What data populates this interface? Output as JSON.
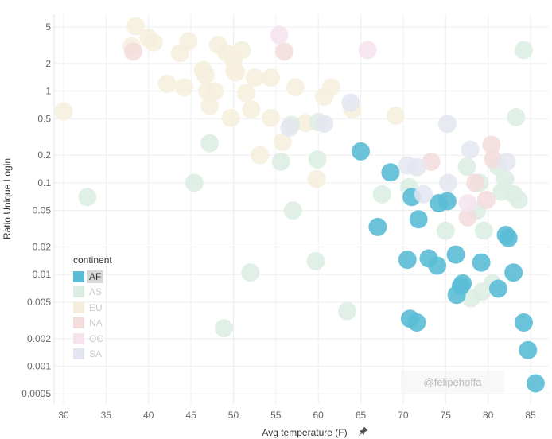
{
  "chart_data": {
    "type": "scatter",
    "title": "",
    "xlabel": "Avg temperature (F)",
    "ylabel": "Ratio Unique Login",
    "xlim": [
      29.5,
      86.5
    ],
    "ylim": [
      0.0004,
      8
    ],
    "yscale": "log",
    "x_ticks": [
      30,
      35,
      40,
      45,
      50,
      55,
      60,
      65,
      70,
      75,
      80,
      85
    ],
    "y_ticks": [
      5,
      2,
      1,
      0.5,
      0.2,
      0.1,
      0.05,
      0.02,
      0.01,
      0.005,
      0.002,
      0.001,
      0.0005
    ],
    "y_tick_labels": [
      "5",
      "2",
      "1",
      "0.5",
      "0.2",
      "0.1",
      "0.05",
      "0.02",
      "0.01",
      "0.005",
      "0.002",
      "0.001",
      "0.0005"
    ],
    "grid": true,
    "legend": {
      "title": "continent",
      "placement": "bottom-left",
      "highlighted": "AF",
      "entries": [
        {
          "name": "AF",
          "color": "#5bbcd6"
        },
        {
          "name": "AS",
          "color": "#dcede3"
        },
        {
          "name": "EU",
          "color": "#f6eedd"
        },
        {
          "name": "NA",
          "color": "#f3dcdc"
        },
        {
          "name": "OC",
          "color": "#f5e3ee"
        },
        {
          "name": "SA",
          "color": "#e3e6f0"
        }
      ]
    },
    "series": [
      {
        "name": "EU",
        "points": [
          [
            30,
            0.6
          ],
          [
            38.5,
            5.1
          ],
          [
            38,
            3.1
          ],
          [
            40,
            3.8
          ],
          [
            40.6,
            3.4
          ],
          [
            43.7,
            2.6
          ],
          [
            44.7,
            3.5
          ],
          [
            42.2,
            1.2
          ],
          [
            44.2,
            1.1
          ],
          [
            46.4,
            1.7
          ],
          [
            46.7,
            1.5
          ],
          [
            48.2,
            3.2
          ],
          [
            49.2,
            2.6
          ],
          [
            50,
            2.2
          ],
          [
            51,
            2.8
          ],
          [
            50.1,
            1.7
          ],
          [
            50.3,
            1.6
          ],
          [
            46.9,
            1.0
          ],
          [
            47.8,
            1.0
          ],
          [
            47.2,
            0.69
          ],
          [
            49.7,
            0.51
          ],
          [
            51.5,
            0.95
          ],
          [
            52.5,
            1.4
          ],
          [
            54.4,
            1.4
          ],
          [
            52.1,
            0.63
          ],
          [
            54.4,
            0.51
          ],
          [
            57.3,
            1.1
          ],
          [
            55.8,
            0.28
          ],
          [
            53.1,
            0.2
          ],
          [
            58.5,
            0.45
          ],
          [
            61.5,
            1.1
          ],
          [
            60.7,
            0.87
          ],
          [
            59.8,
            0.11
          ],
          [
            64,
            0.63
          ],
          [
            69.1,
            0.54
          ]
        ]
      },
      {
        "name": "AS",
        "points": [
          [
            32.8,
            0.07
          ],
          [
            45.4,
            0.1
          ],
          [
            47.2,
            0.27
          ],
          [
            48.9,
            0.0026
          ],
          [
            52,
            0.0105
          ],
          [
            55.6,
            0.17
          ],
          [
            56.8,
            0.43
          ],
          [
            57,
            0.05
          ],
          [
            59.7,
            0.014
          ],
          [
            59.9,
            0.18
          ],
          [
            60,
            0.46
          ],
          [
            63.4,
            0.004
          ],
          [
            67.5,
            0.075
          ],
          [
            70.7,
            0.09
          ],
          [
            75,
            0.03
          ],
          [
            77.5,
            0.15
          ],
          [
            78,
            0.0055
          ],
          [
            78.7,
            0.05
          ],
          [
            79,
            0.1
          ],
          [
            79.3,
            0.0065
          ],
          [
            79.5,
            0.03
          ],
          [
            80.5,
            0.008
          ],
          [
            81.2,
            0.15
          ],
          [
            81.6,
            0.08
          ],
          [
            82,
            0.11
          ],
          [
            83,
            0.075
          ],
          [
            83.3,
            0.52
          ],
          [
            83.6,
            0.065
          ],
          [
            84.2,
            2.8
          ]
        ]
      },
      {
        "name": "AF",
        "points": [
          [
            65,
            0.22
          ],
          [
            68.5,
            0.13
          ],
          [
            67,
            0.033
          ],
          [
            70.5,
            0.0145
          ],
          [
            71,
            0.07
          ],
          [
            71.8,
            0.04
          ],
          [
            70.8,
            0.0033
          ],
          [
            71.6,
            0.003
          ],
          [
            73,
            0.015
          ],
          [
            74,
            0.0125
          ],
          [
            74.2,
            0.06
          ],
          [
            75.2,
            0.063
          ],
          [
            76.2,
            0.0165
          ],
          [
            76.3,
            0.006
          ],
          [
            76.8,
            0.0075
          ],
          [
            77,
            0.008
          ],
          [
            79.2,
            0.0135
          ],
          [
            81.2,
            0.007
          ],
          [
            82.1,
            0.027
          ],
          [
            82.4,
            0.025
          ],
          [
            83,
            0.0105
          ],
          [
            84.2,
            0.003
          ],
          [
            84.7,
            0.0015
          ],
          [
            85.6,
            0.00065
          ]
        ]
      },
      {
        "name": "NA",
        "points": [
          [
            38.2,
            2.7
          ],
          [
            56,
            2.7
          ],
          [
            73.3,
            0.17
          ],
          [
            77.6,
            0.042
          ],
          [
            78.5,
            0.1
          ],
          [
            79.8,
            0.065
          ],
          [
            80.4,
            0.26
          ],
          [
            80.6,
            0.18
          ]
        ]
      },
      {
        "name": "OC",
        "points": [
          [
            55.4,
            4.1
          ],
          [
            65.8,
            2.8
          ],
          [
            77.6,
            0.06
          ]
        ]
      },
      {
        "name": "SA",
        "points": [
          [
            56.6,
            0.4
          ],
          [
            60.7,
            0.44
          ],
          [
            63.8,
            0.75
          ],
          [
            70.5,
            0.155
          ],
          [
            71.6,
            0.148
          ],
          [
            72.4,
            0.075
          ],
          [
            75.2,
            0.44
          ],
          [
            75.3,
            0.1
          ],
          [
            77.9,
            0.23
          ],
          [
            82.2,
            0.17
          ]
        ]
      }
    ],
    "annotations": [
      "@felipehoffa"
    ]
  }
}
